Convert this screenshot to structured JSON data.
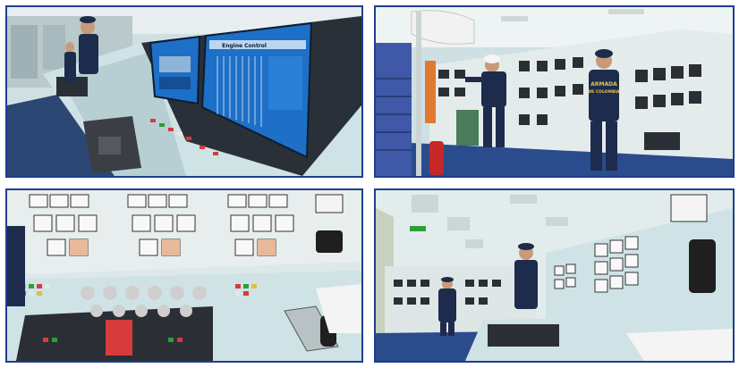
{
  "scenes": [
    {
      "name": "control-console-monitors",
      "screen_header_left": "",
      "screen_header_right": "Engine Control",
      "screen_title": "Engine Control"
    },
    {
      "name": "engine-room-switchboard",
      "uniform_back_text_1": "ARMADA",
      "uniform_back_text_2": "DE COLOMBIA"
    },
    {
      "name": "gauge-panel-closeup"
    },
    {
      "name": "control-room-overview",
      "exit_sign": ""
    }
  ],
  "colors": {
    "frame_border": "#1d3f8f",
    "screen_blue": "#1d6fc7",
    "uniform_navy": "#1d2b4d",
    "console_teal": "#cfe3e6"
  }
}
